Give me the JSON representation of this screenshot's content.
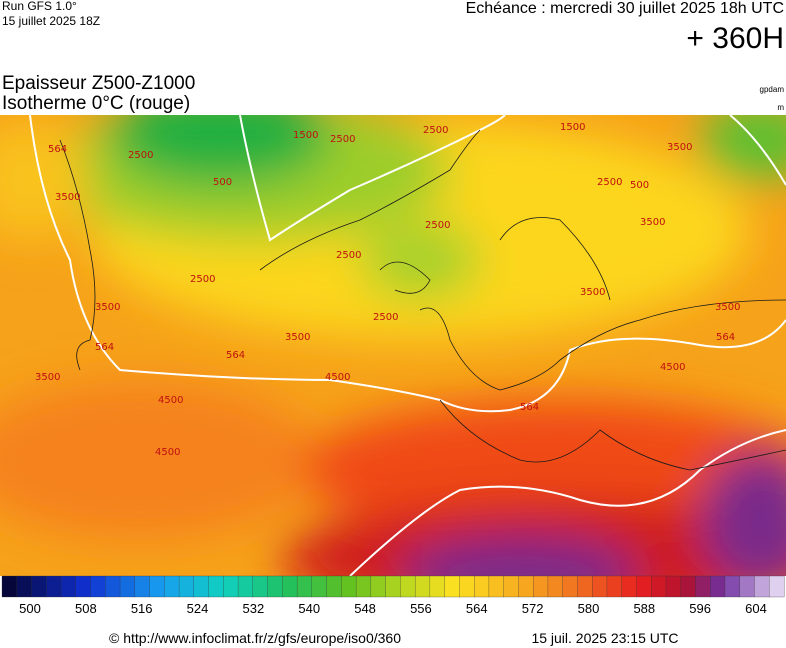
{
  "header": {
    "run": "Run GFS 1.0°",
    "date": "15 juillet 2025 18Z",
    "echeance": "Echéance : mercredi 30 juillet 2025 18h UTC",
    "horizon": "+ 360H",
    "title_1": "Epaisseur Z500-Z1000",
    "title_2": "Isotherme 0°C (rouge)",
    "unit_1": "gpdam",
    "unit_2": "m"
  },
  "map": {
    "contour_labels": [
      "564",
      "3500",
      "2500",
      "1500",
      "2500",
      "500",
      "2500",
      "1500",
      "2500",
      "3500",
      "2500",
      "2500",
      "2500",
      "3500",
      "564",
      "4500",
      "4500",
      "4500",
      "3500",
      "564",
      "3500",
      "4500",
      "564",
      "3500",
      "3500",
      "2500",
      "500",
      "3500",
      "564"
    ]
  },
  "colorbar": {
    "ticks": [
      500,
      508,
      516,
      524,
      532,
      540,
      548,
      556,
      564,
      572,
      580,
      588,
      596,
      604
    ]
  },
  "footer": {
    "url": "© http://www.infoclimat.fr/z/gfs/europe/iso0/360",
    "timestamp": "15 juil. 2025 23:15 UTC"
  }
}
